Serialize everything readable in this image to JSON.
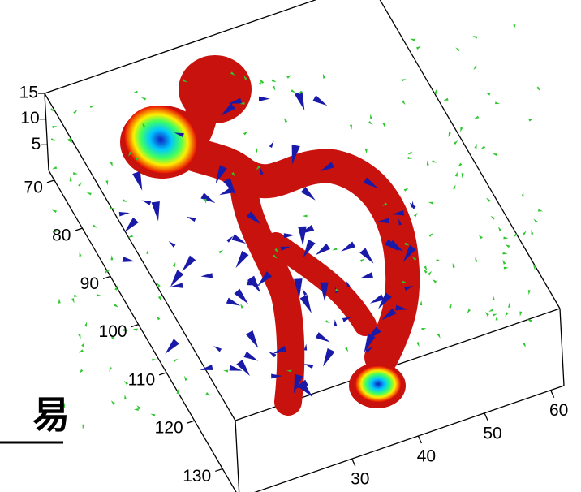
{
  "chart_data": {
    "type": "3d",
    "annotation": "易",
    "xlim": [
      13,
      62
    ],
    "xticks": [
      30,
      40,
      50,
      60
    ],
    "ylim": [
      68,
      136
    ],
    "yticks": [
      70,
      80,
      90,
      100,
      110,
      120,
      130
    ],
    "zlim": [
      0,
      15
    ],
    "zticks": [
      5,
      10,
      15
    ]
  }
}
